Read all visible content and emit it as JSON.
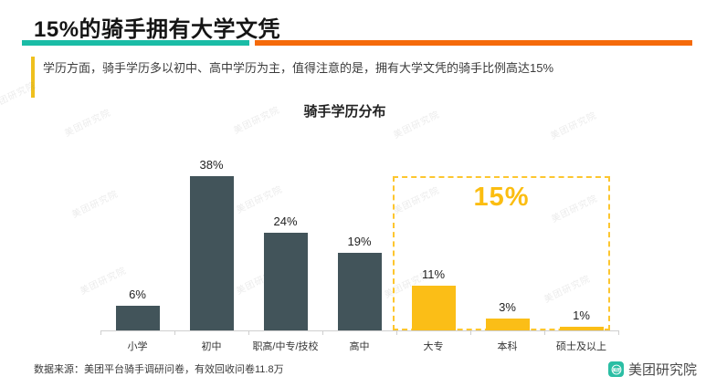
{
  "header": {
    "title": "15%的骑手拥有大学文凭",
    "underline_teal_color": "#1ABCA6",
    "underline_orange_color": "#F56A0A"
  },
  "callout": {
    "text": "学历方面，骑手学历多以初中、高中学历为主，值得注意的是，拥有大学文凭的骑手比例高达15%",
    "border_color": "#EFC01E"
  },
  "chart_data": {
    "type": "bar",
    "title": "骑手学历分布",
    "categories": [
      "小学",
      "初中",
      "职高/中专/技校",
      "高中",
      "大专",
      "本科",
      "硕士及以上"
    ],
    "values": [
      6,
      38,
      24,
      19,
      11,
      3,
      1
    ],
    "value_labels": [
      "6%",
      "38%",
      "24%",
      "19%",
      "11%",
      "3%",
      "1%"
    ],
    "bar_colors": [
      "#42545A",
      "#42545A",
      "#42545A",
      "#42545A",
      "#FBBE17",
      "#FBBE17",
      "#FBBE17"
    ],
    "xlabel": "",
    "ylabel": "",
    "ylim": [
      0,
      40
    ],
    "gridlines": false,
    "legend": "none",
    "value_label_position": "above-bar",
    "highlight": {
      "label": "15%",
      "label_color": "#FBBD11",
      "categories": [
        "大专",
        "本科",
        "硕士及以上"
      ],
      "box_style": "dashed",
      "box_color": "#FDC62F"
    }
  },
  "footer": {
    "source": "数据来源：美团平台骑手调研问卷，有效回收问卷11.8万",
    "logo_text": "美团研究院",
    "logo_icon_text": "美团",
    "logo_color": "#2BBEA4"
  },
  "watermark": {
    "text": "美团研究院"
  }
}
